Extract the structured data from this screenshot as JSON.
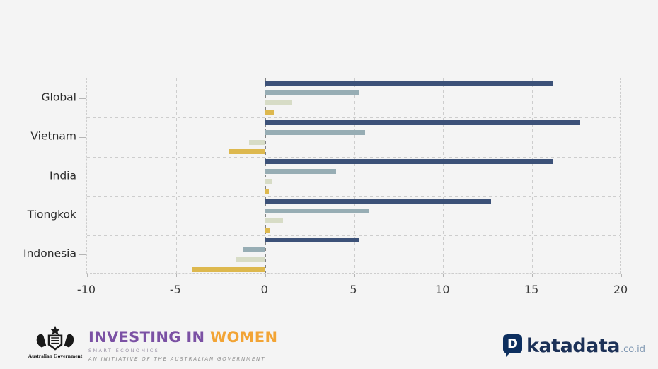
{
  "page": {
    "background": "#f4f4f4"
  },
  "chart_data": {
    "type": "bar",
    "orientation": "horizontal",
    "title": "",
    "categories": [
      "Global",
      "Vietnam",
      "India",
      "Tiongkok",
      "Indonesia"
    ],
    "series": [
      {
        "name": "navy",
        "color": "#3c5178",
        "values": [
          16.2,
          17.7,
          16.2,
          12.7,
          5.3
        ]
      },
      {
        "name": "steel-blue",
        "color": "#97adb4",
        "values": [
          5.3,
          5.6,
          4.0,
          5.8,
          -1.2
        ]
      },
      {
        "name": "pale-sage",
        "color": "#d7dcc6",
        "values": [
          1.5,
          -0.9,
          0.4,
          1.0,
          -1.6
        ]
      },
      {
        "name": "gold",
        "color": "#ddb84e",
        "values": [
          0.5,
          -2.0,
          0.2,
          0.3,
          -4.1
        ]
      }
    ],
    "xlim": [
      -10,
      20
    ],
    "xticks": [
      -10,
      -5,
      0,
      5,
      10,
      15,
      20
    ],
    "grid": "dashed",
    "legend_position": "none"
  },
  "footer": {
    "gov_caption": "Australian Government",
    "iw_title_investing": "INVESTING IN ",
    "iw_title_women": "WOMEN",
    "iw_subtitle": "SMART ECONOMICS",
    "iw_initiative": "AN INITIATIVE OF THE AUSTRALIAN GOVERNMENT",
    "brand_icon_letter": "D",
    "brand": "katadata",
    "brand_suffix": ".co.id",
    "colors": {
      "iw_purple": "#7b51a4",
      "iw_orange": "#f2a435",
      "brand_navy": "#0d2f5f",
      "brand_text": "#1c3157",
      "brand_suffix_color": "#7f97b2"
    }
  }
}
